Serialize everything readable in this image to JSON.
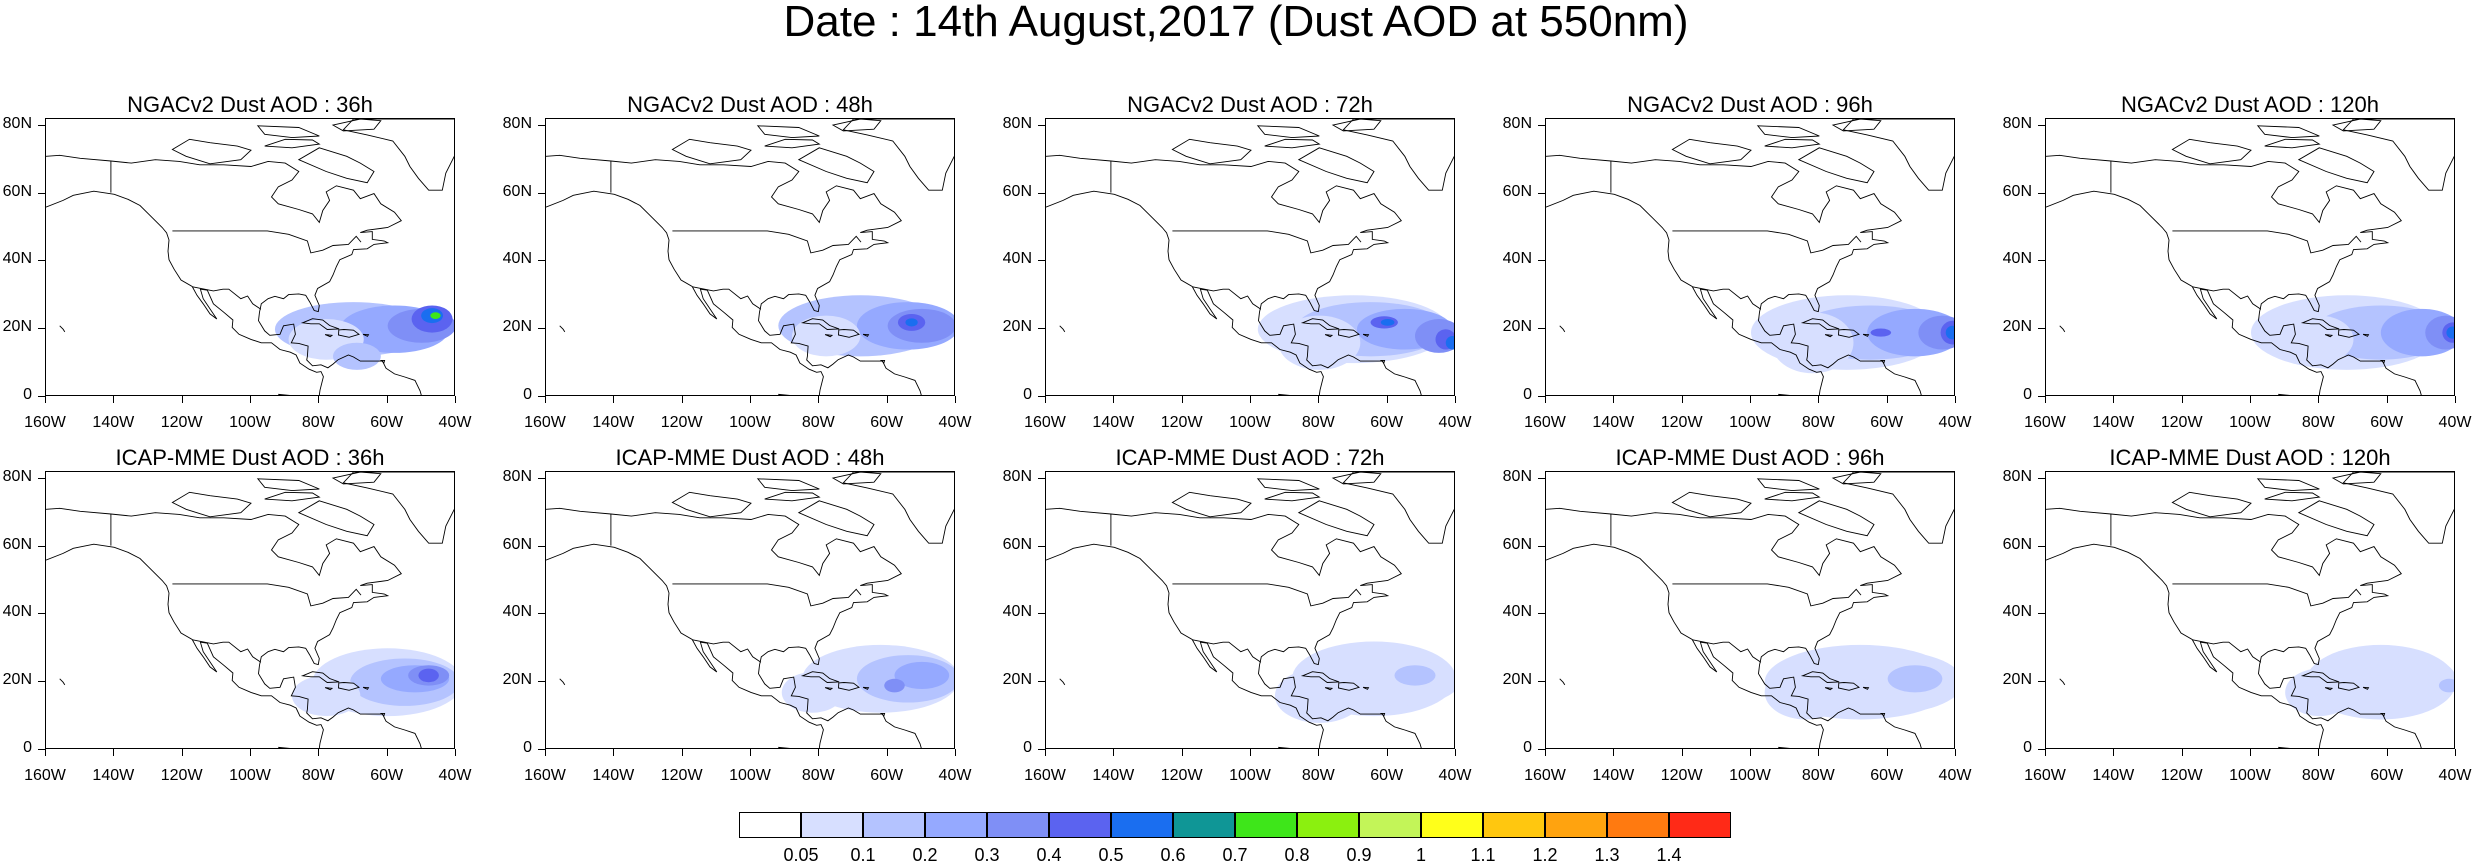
{
  "title": "Date : 14th August,2017 (Dust AOD at 550nm)",
  "lat_labels": [
    "80N",
    "60N",
    "40N",
    "20N",
    "0"
  ],
  "lon_labels": [
    "160W",
    "140W",
    "120W",
    "100W",
    "80W",
    "60W",
    "40W"
  ],
  "panels": [
    {
      "title": "NGACv2 Dust AOD : 36h",
      "model": "NGACv2",
      "lead": "36h"
    },
    {
      "title": "NGACv2 Dust AOD : 48h",
      "model": "NGACv2",
      "lead": "48h"
    },
    {
      "title": "NGACv2 Dust AOD : 72h",
      "model": "NGACv2",
      "lead": "72h"
    },
    {
      "title": "NGACv2 Dust AOD : 96h",
      "model": "NGACv2",
      "lead": "96h"
    },
    {
      "title": "NGACv2 Dust AOD : 120h",
      "model": "NGACv2",
      "lead": "120h"
    },
    {
      "title": "ICAP-MME Dust AOD : 36h",
      "model": "ICAP-MME",
      "lead": "36h"
    },
    {
      "title": "ICAP-MME Dust AOD : 48h",
      "model": "ICAP-MME",
      "lead": "48h"
    },
    {
      "title": "ICAP-MME Dust AOD : 72h",
      "model": "ICAP-MME",
      "lead": "72h"
    },
    {
      "title": "ICAP-MME Dust AOD : 96h",
      "model": "ICAP-MME",
      "lead": "96h"
    },
    {
      "title": "ICAP-MME Dust AOD : 120h",
      "model": "ICAP-MME",
      "lead": "120h"
    }
  ],
  "colorbar": {
    "levels": [
      "0.05",
      "0.1",
      "0.2",
      "0.3",
      "0.4",
      "0.5",
      "0.6",
      "0.7",
      "0.8",
      "0.9",
      "1",
      "1.1",
      "1.2",
      "1.3",
      "1.4"
    ],
    "colors": [
      "#ffffff",
      "#d7dfff",
      "#b4c3ff",
      "#95a9ff",
      "#7f8ff6",
      "#5b63f0",
      "#1a6ef0",
      "#0f9696",
      "#3ee61a",
      "#8bf00f",
      "#c3f558",
      "#ffff1a",
      "#ffc70f",
      "#ffa30f",
      "#ff7a10",
      "#ff2a17"
    ]
  }
}
